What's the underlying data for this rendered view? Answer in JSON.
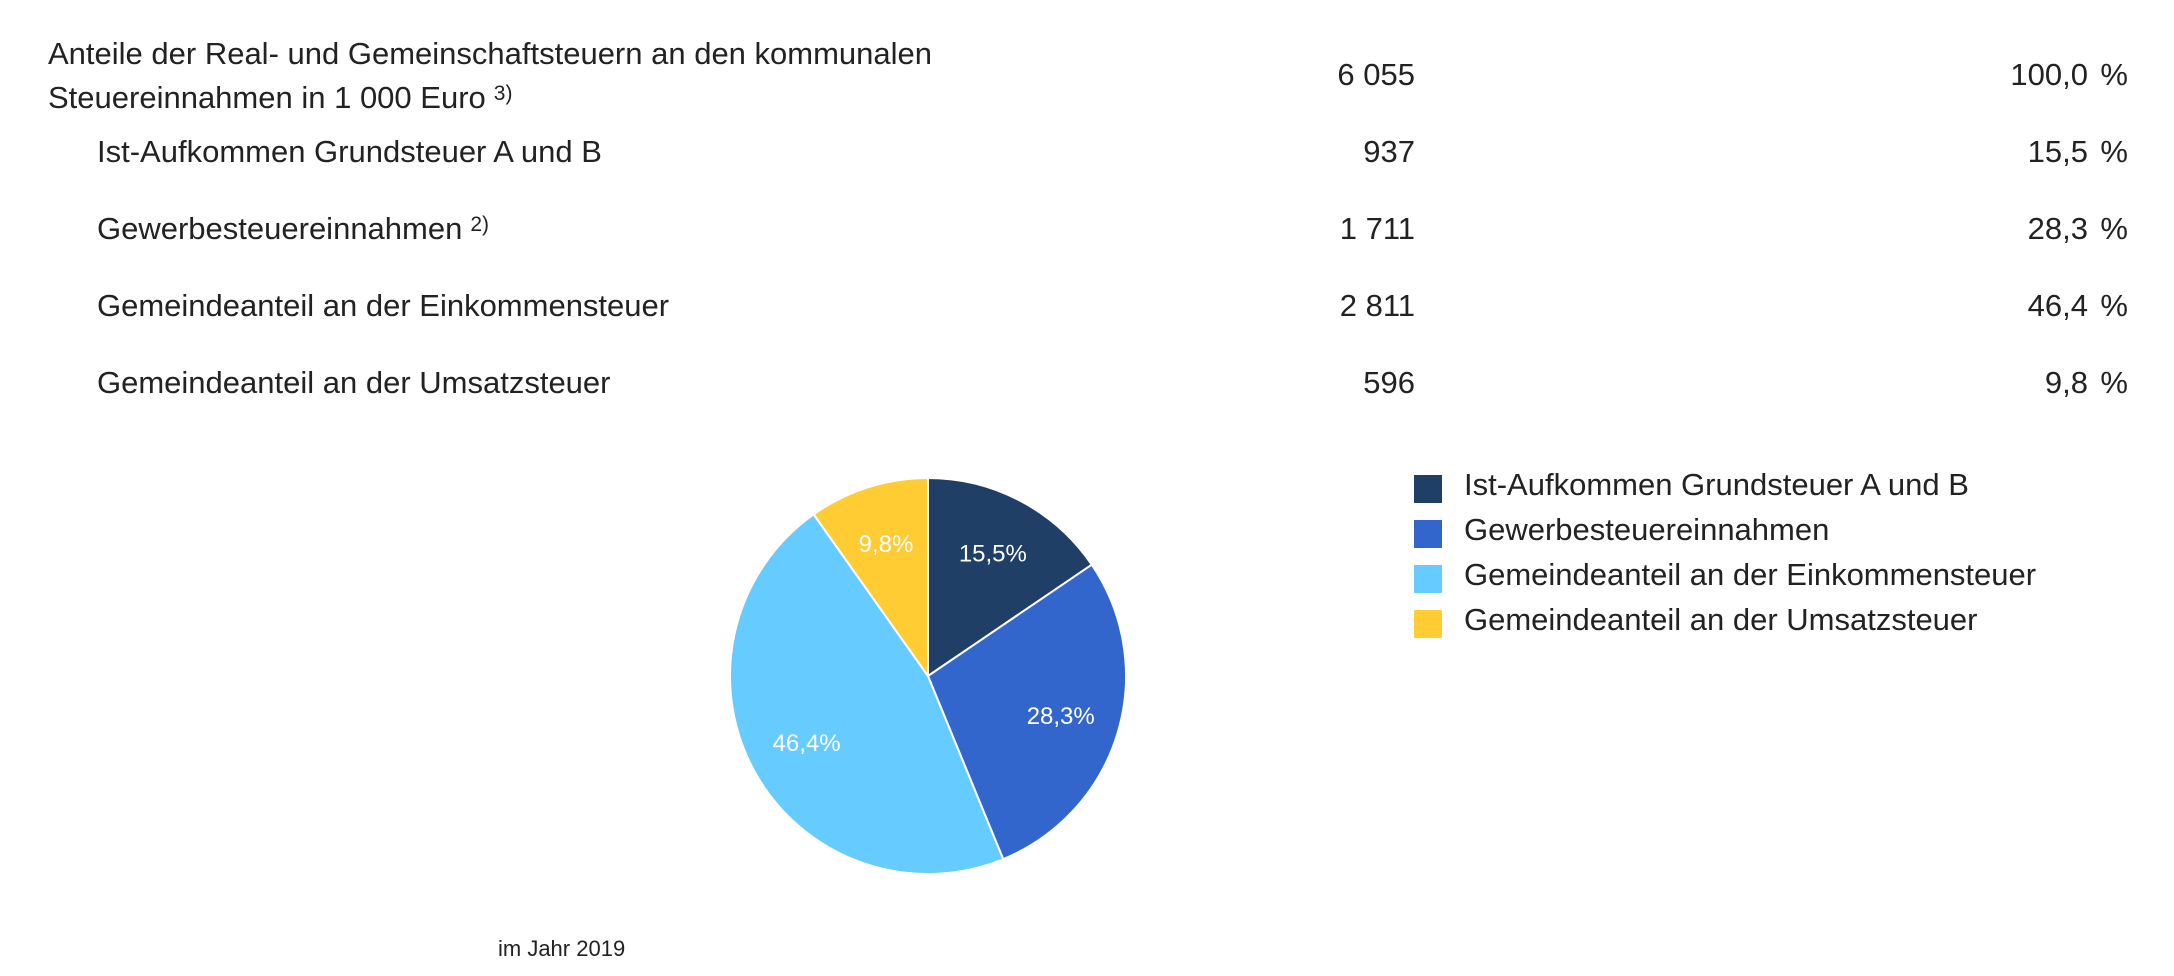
{
  "table": {
    "header": {
      "label_line1": "Anteile der Real- und Gemeinschaftsteuern an den kommunalen",
      "label_line2": "Steuereinnahmen in 1 000 Euro",
      "footnote_marker": "3)",
      "value": "6 055",
      "percent": "100,0",
      "percent_unit": "%"
    },
    "rows": [
      {
        "label": "Ist-Aufkommen Grundsteuer A und B",
        "footnote_marker": "",
        "value": "937",
        "percent": "15,5",
        "percent_unit": "%"
      },
      {
        "label": "Gewerbesteuereinnahmen",
        "footnote_marker": "2)",
        "value": "1 711",
        "percent": "28,3",
        "percent_unit": "%"
      },
      {
        "label": "Gemeindeanteil an der Einkommensteuer",
        "footnote_marker": "",
        "value": "2 811",
        "percent": "46,4",
        "percent_unit": "%"
      },
      {
        "label": "Gemeindeanteil an der Umsatzsteuer",
        "footnote_marker": "",
        "value": "596",
        "percent": "9,8",
        "percent_unit": "%"
      }
    ]
  },
  "chart_data": {
    "type": "pie",
    "categories": [
      "Ist-Aufkommen Grundsteuer A und B",
      "Gewerbesteuereinnahmen",
      "Gemeindeanteil an der Einkommensteuer",
      "Gemeindeanteil an der Umsatzsteuer"
    ],
    "values": [
      15.5,
      28.3,
      46.4,
      9.8
    ],
    "data_labels": [
      "15,5%",
      "28,3%",
      "46,4%",
      "9,8%"
    ],
    "colors": [
      "#1f3f66",
      "#3366cc",
      "#66ccff",
      "#ffcc33"
    ],
    "legend_position": "right",
    "start_angle": "top, clockwise",
    "title": "",
    "caption": "im Jahr 2019"
  }
}
